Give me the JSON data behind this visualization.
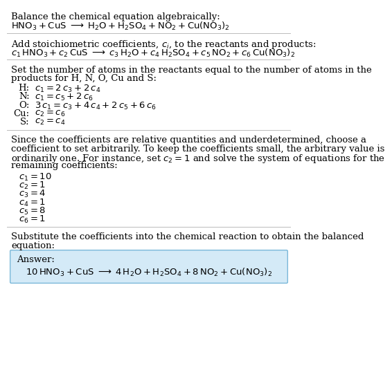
{
  "title_line1": "Balance the chemical equation algebraically:",
  "eq1": "$\\mathrm{HNO_3 + CuS \\;\\longrightarrow\\; H_2O + H_2SO_4 + NO_2 + Cu(NO_3)_2}$",
  "section2_intro": "Add stoichiometric coefficients, $c_i$, to the reactants and products:",
  "eq2": "$c_1\\,\\mathrm{HNO_3} + c_2\\,\\mathrm{CuS} \\;\\longrightarrow\\; c_3\\,\\mathrm{H_2O} + c_4\\,\\mathrm{H_2SO_4} + c_5\\,\\mathrm{NO_2} + c_6\\,\\mathrm{Cu(NO_3)_2}$",
  "section3_intro1": "Set the number of atoms in the reactants equal to the number of atoms in the",
  "section3_intro2": "products for H, N, O, Cu and S:",
  "equations": [
    [
      "H:",
      "$c_1 = 2\\,c_3 + 2\\,c_4$"
    ],
    [
      "N:",
      "$c_1 = c_5 + 2\\,c_6$"
    ],
    [
      "O:",
      "$3\\,c_1 = c_3 + 4\\,c_4 + 2\\,c_5 + 6\\,c_6$"
    ],
    [
      "Cu:",
      "$c_2 = c_6$"
    ],
    [
      "S:",
      "$c_2 = c_4$"
    ]
  ],
  "section4_lines": [
    "Since the coefficients are relative quantities and underdetermined, choose a",
    "coefficient to set arbitrarily. To keep the coefficients small, the arbitrary value is",
    "ordinarily one. For instance, set $c_2 = 1$ and solve the system of equations for the",
    "remaining coefficients:"
  ],
  "coefficients": [
    "$c_1 = 10$",
    "$c_2 = 1$",
    "$c_3 = 4$",
    "$c_4 = 1$",
    "$c_5 = 8$",
    "$c_6 = 1$"
  ],
  "section5_intro1": "Substitute the coefficients into the chemical reaction to obtain the balanced",
  "section5_intro2": "equation:",
  "answer_label": "Answer:",
  "answer_eq": "$10\\,\\mathrm{HNO_3} + \\mathrm{CuS} \\;\\longrightarrow\\; 4\\,\\mathrm{H_2O} + \\mathrm{H_2SO_4} + 8\\,\\mathrm{NO_2} + \\mathrm{Cu(NO_3)_2}$",
  "bg_color": "#ffffff",
  "text_color": "#000000",
  "answer_box_color": "#d4eaf7",
  "answer_box_border": "#7ab8d9",
  "line_color": "#bbbbbb",
  "font_size": 9.5
}
